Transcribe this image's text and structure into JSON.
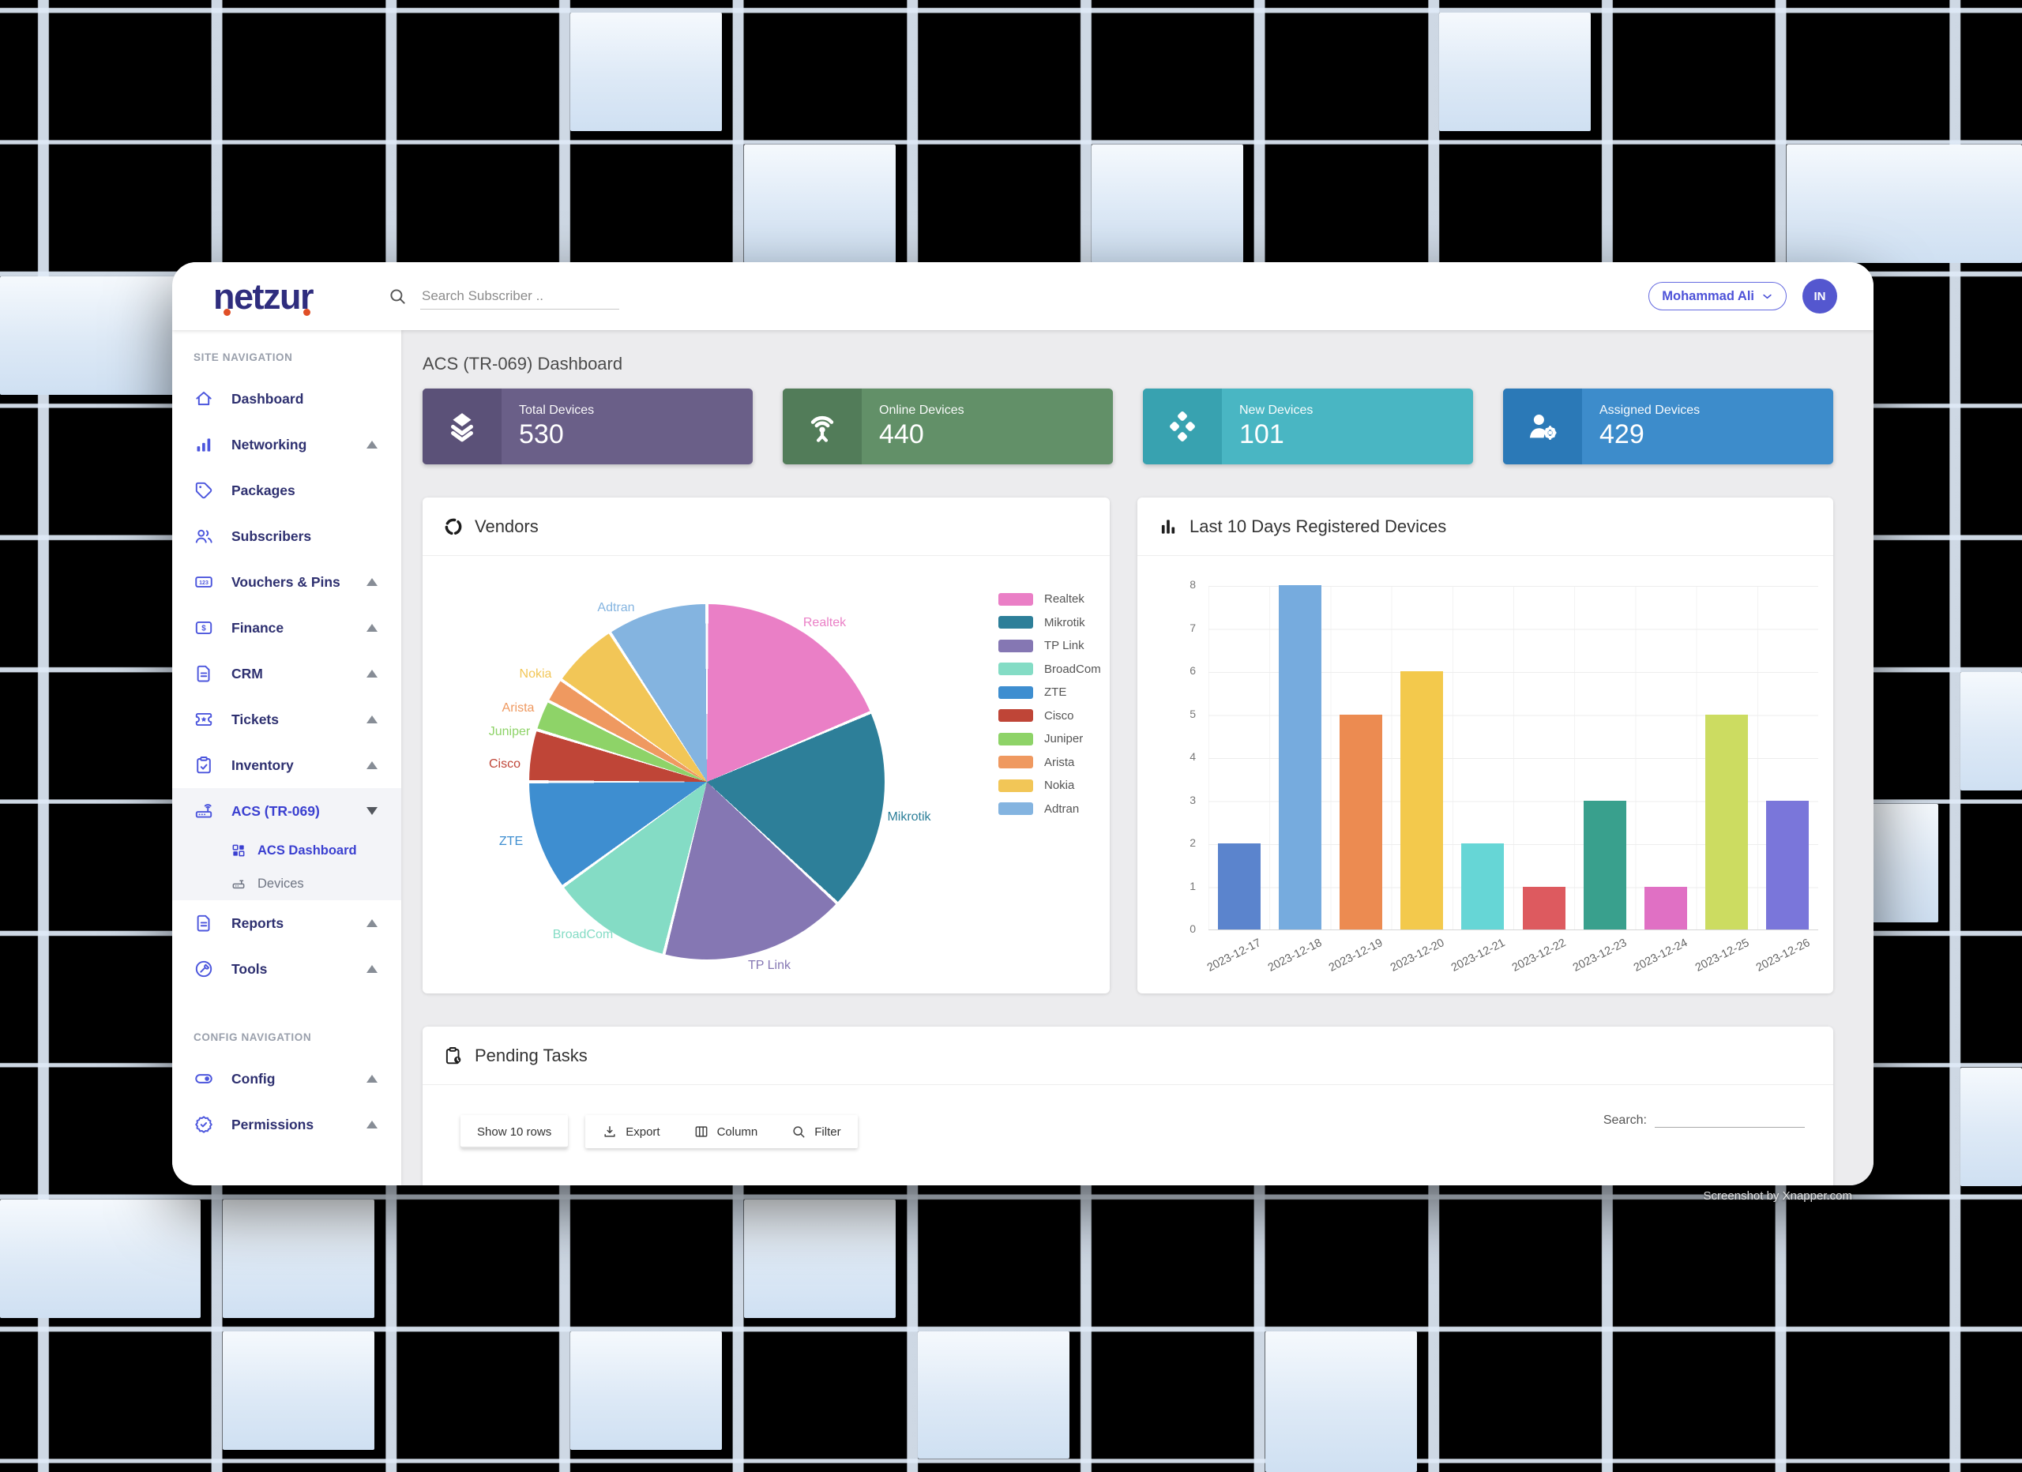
{
  "topbar": {
    "logo_text": "netzur",
    "search_placeholder": "Search Subscriber ..",
    "user_name": "Mohammad Ali",
    "avatar_initials": "IN"
  },
  "sidebar": {
    "sections": [
      {
        "label": "SITE NAVIGATION",
        "items": [
          {
            "label": "Dashboard",
            "icon": "home-icon"
          },
          {
            "label": "Networking",
            "icon": "signal-bars-icon",
            "arrow": "up"
          },
          {
            "label": "Packages",
            "icon": "tag-icon"
          },
          {
            "label": "Subscribers",
            "icon": "users-icon"
          },
          {
            "label": "Vouchers & Pins",
            "icon": "voucher-card-icon",
            "arrow": "up"
          },
          {
            "label": "Finance",
            "icon": "dollar-card-icon",
            "arrow": "up"
          },
          {
            "label": "CRM",
            "icon": "document-icon",
            "arrow": "up"
          },
          {
            "label": "Tickets",
            "icon": "ticket-icon",
            "arrow": "up"
          },
          {
            "label": "Inventory",
            "icon": "clipboard-check-icon",
            "arrow": "up"
          },
          {
            "label": "ACS (TR-069)",
            "icon": "router-icon",
            "arrow": "down",
            "active": true,
            "children": [
              {
                "label": "ACS Dashboard",
                "icon": "grid-icon",
                "active": true
              },
              {
                "label": "Devices",
                "icon": "device-icon"
              }
            ]
          },
          {
            "label": "Reports",
            "icon": "report-icon",
            "arrow": "up"
          },
          {
            "label": "Tools",
            "icon": "tools-icon",
            "arrow": "up"
          }
        ]
      },
      {
        "label": "CONFIG NAVIGATION",
        "items": [
          {
            "label": "Config",
            "icon": "toggle-icon",
            "arrow": "up"
          },
          {
            "label": "Permissions",
            "icon": "badge-check-icon",
            "arrow": "up"
          }
        ]
      }
    ]
  },
  "page_title": "ACS (TR-069) Dashboard",
  "stat_cards": [
    {
      "label": "Total Devices",
      "value": "530",
      "icon": "layers-icon",
      "bg": "#6a5f88",
      "icon_bg": "#5b5178"
    },
    {
      "label": "Online Devices",
      "value": "440",
      "icon": "antenna-icon",
      "bg": "#629068",
      "icon_bg": "#527c59"
    },
    {
      "label": "New Devices",
      "value": "101",
      "icon": "diamond-cluster-icon",
      "bg": "#49b6c3",
      "icon_bg": "#38a2b0"
    },
    {
      "label": "Assigned Devices",
      "value": "429",
      "icon": "user-gear-icon",
      "bg": "#3d8ccb",
      "icon_bg": "#2b79b7"
    }
  ],
  "vendors_card": {
    "title": "Vendors",
    "icon": "ring-icon"
  },
  "bar_card": {
    "title": "Last 10 Days Registered Devices",
    "icon": "bar-chart-icon"
  },
  "pending_card": {
    "title": "Pending Tasks",
    "icon": "clipboard-clock-icon",
    "tools": [
      {
        "label": "Show 10 rows",
        "icon": null
      },
      {
        "label": "Export",
        "icon": "download-icon"
      },
      {
        "label": "Column",
        "icon": "columns-icon"
      },
      {
        "label": "Filter",
        "icon": "search-icon"
      }
    ],
    "search_label": "Search:"
  },
  "watermark": "Screenshot by Xnapper.com",
  "chart_data": [
    {
      "type": "pie",
      "title": "Vendors",
      "legend_position": "right",
      "labels": [
        "Realtek",
        "Mikrotik",
        "TP Link",
        "BroadCom",
        "ZTE",
        "Cisco",
        "Juniper",
        "Arista",
        "Nokia",
        "Adtran"
      ],
      "angles_deg": [
        67,
        66,
        61,
        40,
        36,
        17,
        10,
        8,
        22,
        33
      ],
      "percents": [
        18.6,
        18.3,
        16.9,
        11.1,
        10.0,
        4.7,
        2.8,
        2.2,
        6.1,
        9.2
      ],
      "colors": [
        "#ea7fc6",
        "#2d7f99",
        "#8577b3",
        "#84dcc5",
        "#3e8ed0",
        "#bf4537",
        "#8ed368",
        "#ef9960",
        "#f2c657",
        "#84b4e0"
      ]
    },
    {
      "type": "bar",
      "title": "Last 10 Days Registered Devices",
      "categories": [
        "2023-12-17",
        "2023-12-18",
        "2023-12-19",
        "2023-12-20",
        "2023-12-21",
        "2023-12-22",
        "2023-12-23",
        "2023-12-24",
        "2023-12-25",
        "2023-12-26"
      ],
      "values": [
        2,
        8,
        5,
        6,
        2,
        1,
        3,
        1,
        5,
        3
      ],
      "colors": [
        "#5b84cd",
        "#76abde",
        "#ec8b51",
        "#f3c94c",
        "#66d6d6",
        "#dd5a5f",
        "#39a08d",
        "#e070c4",
        "#ccdc61",
        "#7a76da"
      ],
      "ylim": [
        0,
        8
      ],
      "grid": true,
      "xlabel": "",
      "ylabel": ""
    }
  ]
}
